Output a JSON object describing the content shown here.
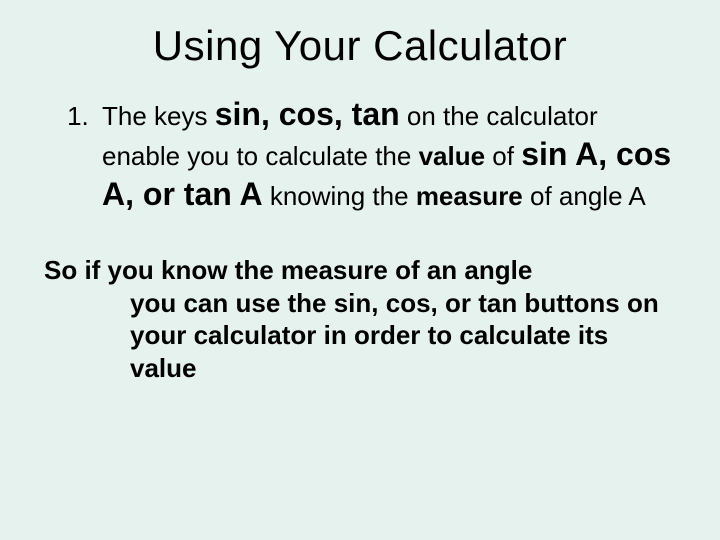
{
  "background_color": "#e6f2ed",
  "text_color": "#000000",
  "font_family": "Arial",
  "title": "Using Your Calculator",
  "title_fontsize": 42,
  "list_marker": "1.",
  "item1": {
    "run1": "The keys ",
    "run2_big": "sin, cos, tan",
    "run3": " on the calculator enable you to calculate the ",
    "run4_bold": "value",
    "run5": " of ",
    "run6_big": "sin A, cos A, or tan A",
    "run7": " knowing the ",
    "run8_bold": "measure",
    "run9": " of angle A"
  },
  "para2": {
    "line1": "So if you know the measure of an angle",
    "line2": "you can use the sin, cos, or tan buttons on your calculator in order to calculate its value"
  },
  "body_fontsize": 26,
  "big_fontsize": 32
}
